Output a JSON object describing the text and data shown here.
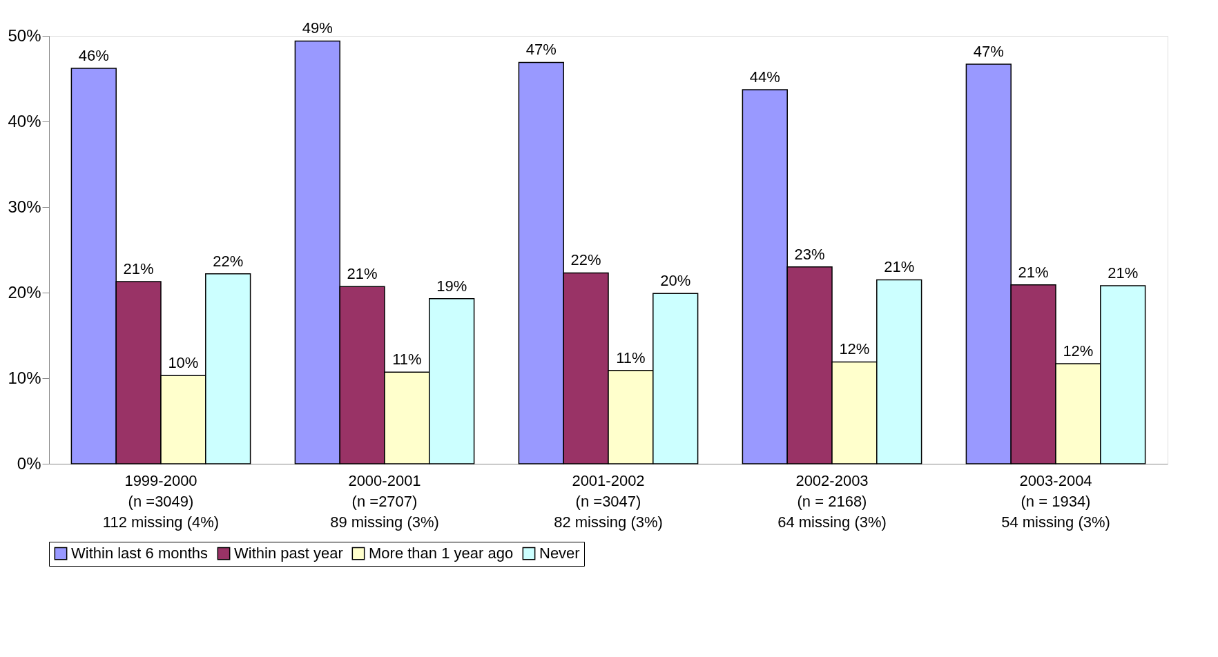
{
  "chart_data": {
    "type": "bar",
    "categories": [
      "1999-2000\n(n =3049)\n112 missing (4%)",
      "2000-2001\n(n =2707)\n89 missing (3%)",
      "2001-2002\n(n =3047)\n82 missing (3%)",
      "2002-2003\n(n = 2168)\n64 missing (3%)",
      "2003-2004\n(n = 1934)\n54 missing (3%)"
    ],
    "series": [
      {
        "name": "Within last 6 months",
        "color": "#9999ff",
        "values": [
          46.2,
          49.4,
          46.9,
          43.7,
          46.7
        ],
        "value_labels": [
          "46%",
          "49%",
          "47%",
          "44%",
          "47%"
        ]
      },
      {
        "name": "Within past year",
        "color": "#993366",
        "values": [
          21.3,
          20.7,
          22.3,
          23.0,
          20.9
        ],
        "value_labels": [
          "21%",
          "21%",
          "22%",
          "23%",
          "21%"
        ]
      },
      {
        "name": "More than 1 year ago",
        "color": "#ffffcc",
        "values": [
          10.3,
          10.7,
          10.9,
          11.9,
          11.7
        ],
        "value_labels": [
          "10%",
          "11%",
          "11%",
          "12%",
          "12%"
        ]
      },
      {
        "name": "Never",
        "color": "#ccffff",
        "values": [
          22.2,
          19.3,
          19.9,
          21.5,
          20.8
        ],
        "value_labels": [
          "22%",
          "19%",
          "20%",
          "21%",
          "21%"
        ]
      }
    ],
    "ylim": [
      0,
      50
    ],
    "yticks": [
      {
        "value": 0,
        "label": "0%"
      },
      {
        "value": 10,
        "label": "10%"
      },
      {
        "value": 20,
        "label": "20%"
      },
      {
        "value": 30,
        "label": "30%"
      },
      {
        "value": 40,
        "label": "40%"
      },
      {
        "value": 50,
        "label": "50%"
      }
    ],
    "grid": false,
    "legend": "bottom"
  }
}
